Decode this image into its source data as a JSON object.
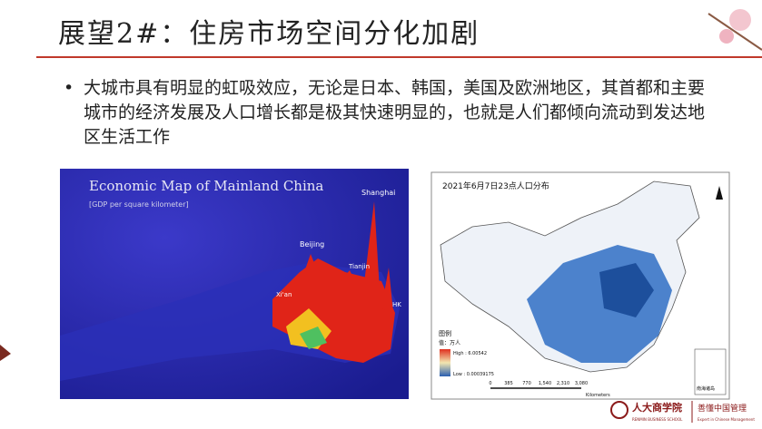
{
  "header": {
    "title": "展望2#：住房市场空间分化加剧"
  },
  "bullet": {
    "text": "大城市具有明显的虹吸效应，无论是日本、韩国，美国及欧洲地区，其首都和主要城市的经济发展及人口增长都是极其快速明显的，也就是人们都倾向流动到发达地区生活工作"
  },
  "left_image": {
    "title": "Economic Map of Mainland China",
    "subtitle": "[GDP per square kilometer]",
    "cities": [
      "Shanghai",
      "Beijing",
      "Tianjin",
      "Xi'an",
      "HK"
    ]
  },
  "right_image": {
    "title": "2021年6月7日23点人口分布",
    "legend_title": "图例",
    "legend_unit": "值：万人",
    "legend_high": "High : 6.00542",
    "legend_low": "Low : 0.00039175",
    "scale_ticks": [
      "0",
      "385",
      "770",
      "1,540",
      "2,310",
      "3,080"
    ],
    "scale_unit": "Kilometers",
    "inset": "南海诸岛"
  },
  "logo": {
    "name": "人大商学院",
    "name_en": "RENMIN BUSINESS SCHOOL",
    "slogan": "善懂中国管理",
    "slogan_en": "Expert in Chinese Management"
  }
}
